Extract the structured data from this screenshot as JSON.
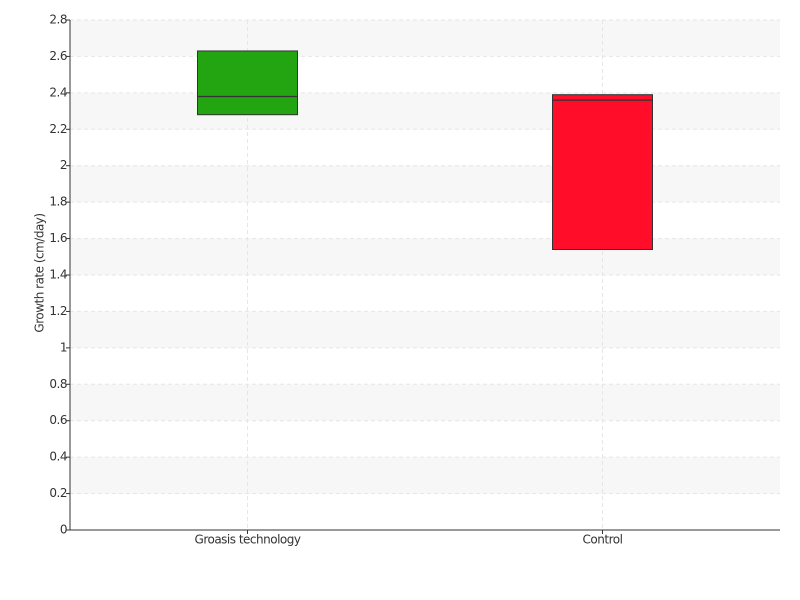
{
  "chart_data": {
    "type": "box",
    "y_label": "Growth rate (cm/day)",
    "categories": [
      "Groasis technology",
      "Control"
    ],
    "q1": [
      2.28,
      1.54
    ],
    "median": [
      2.38,
      2.36
    ],
    "q3": [
      2.63,
      2.39
    ],
    "colors": [
      "#22a511",
      "#ff0d29"
    ],
    "ylim": [
      0,
      2.8
    ],
    "yticks": [
      0,
      0.2,
      0.4,
      0.6,
      0.8,
      1,
      1.2,
      1.4,
      1.6,
      1.8,
      2,
      2.2,
      2.4,
      2.6,
      2.8
    ],
    "grid": true
  }
}
